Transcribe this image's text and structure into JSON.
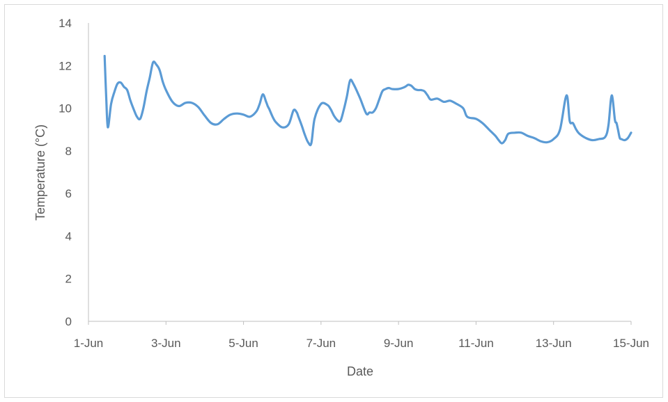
{
  "chart_data": {
    "type": "line",
    "title": "",
    "xlabel": "Date",
    "ylabel": "Temperature (°C)",
    "xlim": [
      "1-Jun",
      "15-Jun"
    ],
    "ylim": [
      0,
      14
    ],
    "x_tick_labels": [
      "1-Jun",
      "3-Jun",
      "5-Jun",
      "7-Jun",
      "9-Jun",
      "11-Jun",
      "13-Jun",
      "15-Jun"
    ],
    "y_tick_labels": [
      "0",
      "2",
      "4",
      "6",
      "8",
      "10",
      "12",
      "14"
    ],
    "grid": false,
    "legend": "none",
    "line_color": "#5b9bd5",
    "series": [
      {
        "x": [
          "1-Jun 10:00",
          "1-Jun 11:00",
          "1-Jun 12:00",
          "1-Jun 14:00",
          "1-Jun 16:00",
          "1-Jun 18:00",
          "1-Jun 20:00",
          "1-Jun 22:00",
          "2-Jun 00:00",
          "2-Jun 02:00",
          "2-Jun 04:00",
          "2-Jun 06:00",
          "2-Jun 08:00",
          "2-Jun 10:00",
          "2-Jun 12:00",
          "2-Jun 14:00",
          "2-Jun 16:00",
          "2-Jun 18:00",
          "2-Jun 20:00",
          "2-Jun 22:00",
          "3-Jun 00:00",
          "3-Jun 04:00",
          "3-Jun 08:00",
          "3-Jun 12:00",
          "3-Jun 16:00",
          "3-Jun 20:00",
          "4-Jun 00:00",
          "4-Jun 04:00",
          "4-Jun 08:00",
          "4-Jun 12:00",
          "4-Jun 16:00",
          "4-Jun 20:00",
          "5-Jun 00:00",
          "5-Jun 04:00",
          "5-Jun 08:00",
          "5-Jun 10:00",
          "5-Jun 12:00",
          "5-Jun 14:00",
          "5-Jun 15:00",
          "5-Jun 16:00",
          "5-Jun 18:00",
          "5-Jun 20:00",
          "6-Jun 00:00",
          "6-Jun 04:00",
          "6-Jun 07:00",
          "6-Jun 09:00",
          "6-Jun 10:00",
          "6-Jun 12:00",
          "6-Jun 14:00",
          "6-Jun 16:00",
          "6-Jun 18:00",
          "6-Jun 20:00",
          "7-Jun 00:00",
          "7-Jun 04:00",
          "7-Jun 06:00",
          "7-Jun 08:00",
          "7-Jun 10:00",
          "7-Jun 12:00",
          "7-Jun 14:00",
          "7-Jun 16:00",
          "7-Jun 18:00",
          "7-Jun 20:00",
          "8-Jun 00:00",
          "8-Jun 04:00",
          "8-Jun 06:00",
          "8-Jun 08:00",
          "8-Jun 10:00",
          "8-Jun 12:00",
          "8-Jun 14:00",
          "8-Jun 16:00",
          "8-Jun 18:00",
          "8-Jun 20:00",
          "9-Jun 00:00",
          "9-Jun 04:00",
          "9-Jun 06:00",
          "9-Jun 08:00",
          "9-Jun 10:00",
          "9-Jun 12:00",
          "9-Jun 14:00",
          "9-Jun 16:00",
          "9-Jun 18:00",
          "9-Jun 20:00",
          "10-Jun 00:00",
          "10-Jun 04:00",
          "10-Jun 08:00",
          "10-Jun 12:00",
          "10-Jun 16:00",
          "10-Jun 18:00",
          "10-Jun 20:00",
          "11-Jun 00:00",
          "11-Jun 04:00",
          "11-Jun 08:00",
          "11-Jun 12:00",
          "11-Jun 14:00",
          "11-Jun 16:00",
          "11-Jun 18:00",
          "11-Jun 20:00",
          "12-Jun 00:00",
          "12-Jun 04:00",
          "12-Jun 08:00",
          "12-Jun 12:00",
          "12-Jun 16:00",
          "12-Jun 20:00",
          "13-Jun 00:00",
          "13-Jun 04:00",
          "13-Jun 08:00",
          "13-Jun 10:00",
          "13-Jun 12:00",
          "13-Jun 14:00",
          "13-Jun 16:00",
          "13-Jun 20:00",
          "14-Jun 00:00",
          "14-Jun 04:00",
          "14-Jun 08:00",
          "14-Jun 10:00",
          "14-Jun 12:00",
          "14-Jun 14:00",
          "14-Jun 15:00",
          "14-Jun 16:00",
          "14-Jun 17:00",
          "14-Jun 18:00",
          "14-Jun 20:00",
          "14-Jun 22:00",
          "15-Jun 00:00"
        ],
        "values": [
          12.45,
          10.5,
          9.1,
          10.2,
          10.75,
          11.15,
          11.2,
          11.0,
          10.85,
          10.35,
          9.95,
          9.6,
          9.5,
          10.0,
          10.8,
          11.45,
          12.15,
          12.05,
          11.8,
          11.25,
          10.85,
          10.3,
          10.1,
          10.25,
          10.25,
          10.05,
          9.65,
          9.3,
          9.25,
          9.5,
          9.7,
          9.75,
          9.7,
          9.6,
          9.85,
          10.2,
          10.65,
          10.3,
          10.1,
          9.95,
          9.6,
          9.35,
          9.1,
          9.25,
          9.9,
          9.8,
          9.6,
          9.2,
          8.75,
          8.4,
          8.35,
          9.5,
          10.2,
          10.15,
          9.95,
          9.65,
          9.45,
          9.4,
          9.9,
          10.55,
          11.3,
          11.15,
          10.5,
          9.75,
          9.8,
          9.8,
          10.0,
          10.4,
          10.8,
          10.9,
          10.95,
          10.9,
          10.9,
          11.0,
          11.1,
          11.05,
          10.9,
          10.85,
          10.85,
          10.8,
          10.6,
          10.4,
          10.45,
          10.3,
          10.35,
          10.2,
          10.0,
          9.65,
          9.55,
          9.5,
          9.3,
          9.0,
          8.7,
          8.5,
          8.35,
          8.5,
          8.8,
          8.85,
          8.85,
          8.7,
          8.6,
          8.45,
          8.4,
          8.55,
          9.0,
          10.6,
          9.4,
          9.3,
          9.0,
          8.8,
          8.6,
          8.5,
          8.55,
          8.65,
          9.2,
          10.6,
          9.45,
          9.3,
          8.95,
          8.6,
          8.55,
          8.5,
          8.6,
          8.85
        ]
      }
    ]
  }
}
